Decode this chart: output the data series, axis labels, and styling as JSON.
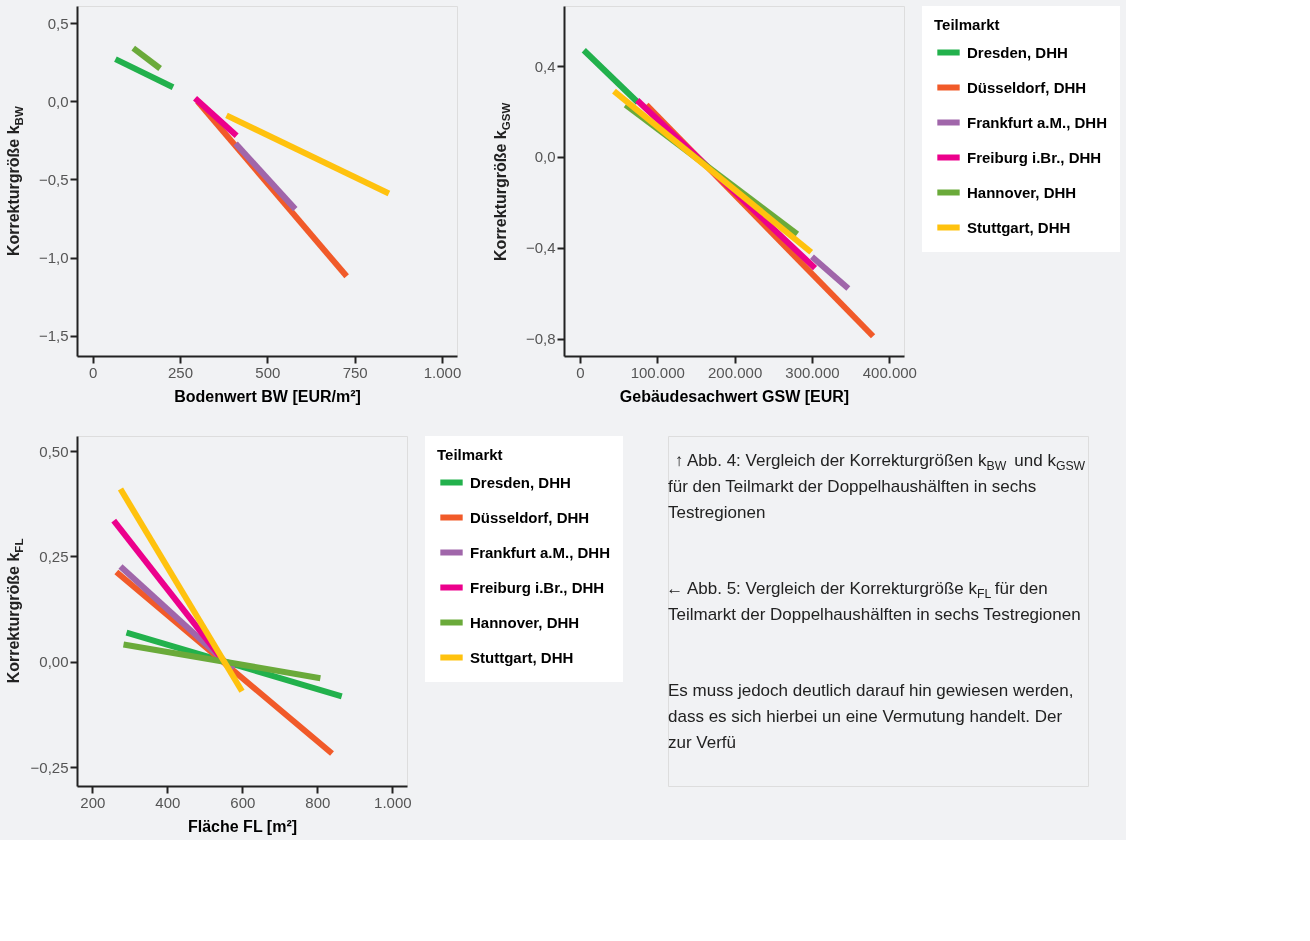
{
  "chart_data": [
    {
      "type": "line",
      "xlabel": "Bodenwert  BW  [EUR/m²]",
      "ylabel": "Korrekturgröße  k$_{BW}$",
      "xlim": [
        -45,
        1043
      ],
      "ylim": [
        -1.63,
        0.61
      ],
      "xticks": [
        0,
        250,
        500,
        750,
        {
          "value": 1000,
          "label": "1.000"
        }
      ],
      "yticks": [
        {
          "value": 0.5,
          "label": "0,5"
        },
        {
          "value": 0,
          "label": "0,0"
        },
        {
          "value": -0.5,
          "label": "−0,5"
        },
        {
          "value": -1,
          "label": "−1,0"
        },
        {
          "value": -1.5,
          "label": "−1,5"
        }
      ],
      "legend": false,
      "series": [
        {
          "color": "#22b14c",
          "x": [
            65,
            230
          ],
          "values": [
            0.27,
            0.09
          ]
        },
        {
          "color": "#f15a29",
          "x": [
            300,
            727
          ],
          "values": [
            0.0,
            -1.12
          ]
        },
        {
          "color": "#a066aa",
          "x": [
            409,
            580
          ],
          "values": [
            -0.27,
            -0.69
          ]
        },
        {
          "color": "#ec008c",
          "x": [
            293,
            412
          ],
          "values": [
            0.02,
            -0.22
          ]
        },
        {
          "color": "#6aaa3a",
          "x": [
            116,
            193
          ],
          "values": [
            0.34,
            0.21
          ]
        },
        {
          "color": "#ffc20e",
          "x": [
            383,
            848
          ],
          "values": [
            -0.09,
            -0.59
          ]
        }
      ]
    },
    {
      "type": "line",
      "xlabel": "Gebäudesachwert   GSW   [EUR]",
      "ylabel": "Korrekturgröße  k$_{GSW}$",
      "xlim": [
        -20600,
        419000
      ],
      "ylim": [
        -0.877,
        0.665
      ],
      "xticks": [
        0,
        {
          "value": 100000,
          "label": "100.000"
        },
        {
          "value": 200000,
          "label": "200.000"
        },
        {
          "value": 300000,
          "label": "300.000"
        },
        {
          "value": 400000,
          "label": "400.000"
        }
      ],
      "yticks": [
        {
          "value": 0.4,
          "label": "0,4"
        },
        {
          "value": 0,
          "label": "0,0"
        },
        {
          "value": -0.4,
          "label": "−0,4"
        },
        {
          "value": -0.8,
          "label": "−0,8"
        }
      ],
      "legend": "right",
      "legend_title": "Teilmarkt",
      "annotations": [
        "↑ Abb. 4: Vergleich der Korrekturgrößen k$_{BW}$ und k$_{GSW}$ für den Teilmarkt der Doppelhaushälften in sechs Testregionen"
      ],
      "series": [
        {
          "name": "Dresden, DHH",
          "color": "#22b14c",
          "x": [
            5000,
            75000
          ],
          "values": [
            0.47,
            0.24
          ]
        },
        {
          "name": "Düsseldorf, DHH",
          "color": "#f15a29",
          "x": [
            86000,
            379000
          ],
          "values": [
            0.23,
            -0.79
          ]
        },
        {
          "name": "Frankfurt a.M., DHH",
          "color": "#a066aa",
          "x": [
            300000,
            347000
          ],
          "values": [
            -0.44,
            -0.58
          ]
        },
        {
          "name": "Freiburg i.Br., DHH",
          "color": "#ec008c",
          "x": [
            74000,
            304000
          ],
          "values": [
            0.25,
            -0.49
          ]
        },
        {
          "name": "Hannover, DHH",
          "color": "#6aaa3a",
          "x": [
            59000,
            281000
          ],
          "values": [
            0.23,
            -0.34
          ]
        },
        {
          "name": "Stuttgart, DHH",
          "color": "#ffc20e",
          "x": [
            44000,
            299000
          ],
          "values": [
            0.29,
            -0.42
          ]
        }
      ]
    },
    {
      "type": "line",
      "xlabel": "Fläche  FL  [m²]",
      "ylabel": "Korrekturgröße  k$_{FL}$",
      "xlim": [
        159,
        1039
      ],
      "ylim": [
        -0.295,
        0.536
      ],
      "xticks": [
        200,
        400,
        600,
        800,
        {
          "value": 1000,
          "label": "1.000"
        }
      ],
      "yticks": [
        {
          "value": 0.5,
          "label": "0,50"
        },
        {
          "value": 0.25,
          "label": "0,25"
        },
        {
          "value": 0,
          "label": "0,00"
        },
        {
          "value": -0.25,
          "label": "−0,25"
        }
      ],
      "legend": "right",
      "legend_title": "Teilmarkt",
      "annotations": [
        "← Abb. 5: Vergleich der Korrekturgröße k$_{FL}$ für den Teilmarkt der Doppelhaushälften in sechs Testregionen",
        "Es muss jedoch deutlich darauf hin gewiesen werden, dass es sich hierbei un eine Vermutung handelt. Der zur Verfü"
      ],
      "series": [
        {
          "name": "Dresden, DHH",
          "color": "#22b14c",
          "x": [
            291,
            865
          ],
          "values": [
            0.069,
            -0.082
          ]
        },
        {
          "name": "Düsseldorf, DHH",
          "color": "#f15a29",
          "x": [
            264,
            839
          ],
          "values": [
            0.213,
            -0.218
          ]
        },
        {
          "name": "Frankfurt a.M., DHH",
          "color": "#a066aa",
          "x": [
            275,
            576
          ],
          "values": [
            0.226,
            -0.018
          ]
        },
        {
          "name": "Freiburg i.Br., DHH",
          "color": "#ec008c",
          "x": [
            257,
            560
          ],
          "values": [
            0.335,
            -0.01
          ]
        },
        {
          "name": "Hannover, DHH",
          "color": "#6aaa3a",
          "x": [
            283,
            808
          ],
          "values": [
            0.041,
            -0.039
          ]
        },
        {
          "name": "Stuttgart, DHH",
          "color": "#ffc20e",
          "x": [
            275,
            599
          ],
          "values": [
            0.41,
            -0.07
          ]
        }
      ]
    }
  ]
}
